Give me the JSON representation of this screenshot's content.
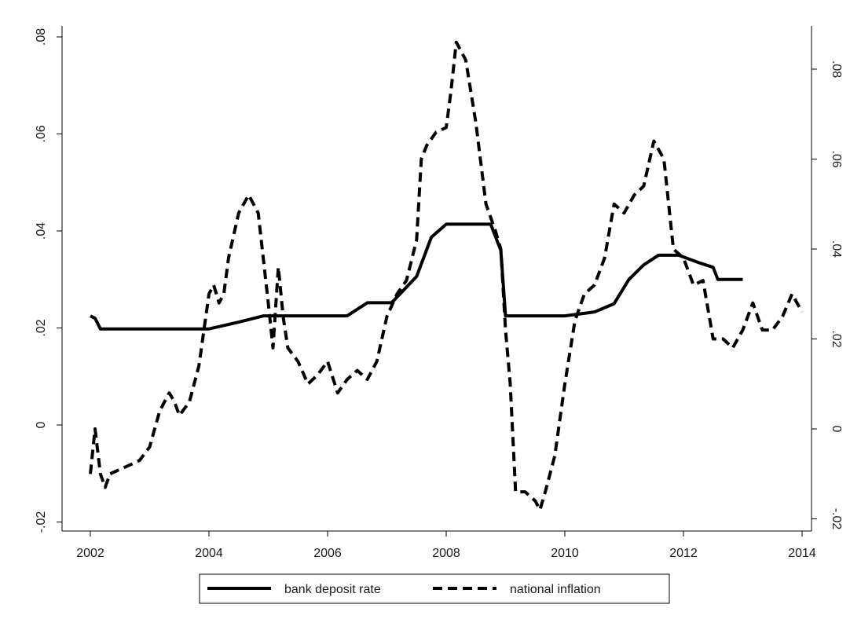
{
  "chart_data": {
    "type": "line",
    "title": "",
    "xlabel": "",
    "ylabel": "",
    "y2label": "",
    "grid": false,
    "legend_position": "bottom",
    "xlim": [
      2002,
      2014
    ],
    "x_ticks": [
      "2002",
      "2004",
      "2006",
      "2008",
      "2010",
      "2012",
      "2014"
    ],
    "ylim_left": [
      -0.02,
      0.08
    ],
    "y_ticks_left": [
      "-.02",
      "0",
      ".02",
      ".04",
      ".06",
      ".08"
    ],
    "ylim_right": [
      -0.02,
      0.08
    ],
    "y_ticks_right": [
      "-.02",
      "0",
      ".02",
      ".04",
      ".06",
      ".08"
    ],
    "series": [
      {
        "name": "bank deposit rate",
        "style": "solid",
        "axis": "left",
        "color": "#000000",
        "x": [
          2002.0,
          2002.08,
          2002.17,
          2003.0,
          2004.0,
          2004.5,
          2004.92,
          2005.5,
          2006.33,
          2006.67,
          2007.08,
          2007.5,
          2007.75,
          2008.0,
          2008.75,
          2008.92,
          2009.0,
          2010.0,
          2010.5,
          2010.83,
          2011.08,
          2011.33,
          2011.58,
          2011.92,
          2012.25,
          2012.5,
          2012.58,
          2013.0
        ],
        "y": [
          0.0225,
          0.022,
          0.0198,
          0.0198,
          0.0198,
          0.0212,
          0.0225,
          0.0225,
          0.0225,
          0.0252,
          0.0252,
          0.0306,
          0.0387,
          0.0414,
          0.0414,
          0.036,
          0.0225,
          0.0225,
          0.0233,
          0.025,
          0.03,
          0.033,
          0.035,
          0.035,
          0.0335,
          0.0325,
          0.03,
          0.03
        ]
      },
      {
        "name": "national inflation",
        "style": "dashed",
        "axis": "right",
        "color": "#000000",
        "x": [
          2002.0,
          2002.08,
          2002.17,
          2002.25,
          2002.33,
          2002.5,
          2002.67,
          2002.83,
          2003.0,
          2003.17,
          2003.33,
          2003.42,
          2003.5,
          2003.67,
          2003.83,
          2004.0,
          2004.08,
          2004.17,
          2004.25,
          2004.33,
          2004.5,
          2004.67,
          2004.83,
          2005.0,
          2005.08,
          2005.17,
          2005.25,
          2005.33,
          2005.5,
          2005.67,
          2005.83,
          2006.0,
          2006.17,
          2006.33,
          2006.5,
          2006.67,
          2006.83,
          2007.0,
          2007.17,
          2007.33,
          2007.5,
          2007.58,
          2007.67,
          2007.83,
          2008.0,
          2008.08,
          2008.17,
          2008.25,
          2008.33,
          2008.5,
          2008.67,
          2008.83,
          2008.92,
          2009.0,
          2009.08,
          2009.17,
          2009.33,
          2009.5,
          2009.58,
          2009.67,
          2009.83,
          2010.0,
          2010.17,
          2010.33,
          2010.5,
          2010.67,
          2010.83,
          2011.0,
          2011.17,
          2011.33,
          2011.5,
          2011.67,
          2011.83,
          2012.0,
          2012.17,
          2012.33,
          2012.5,
          2012.67,
          2012.83,
          2013.0,
          2013.17,
          2013.33,
          2013.5,
          2013.67,
          2013.83,
          2014.0
        ],
        "y": [
          -0.01,
          0.0,
          -0.01,
          -0.013,
          -0.01,
          -0.009,
          -0.008,
          -0.007,
          -0.004,
          0.004,
          0.008,
          0.006,
          0.003,
          0.006,
          0.014,
          0.03,
          0.032,
          0.028,
          0.03,
          0.038,
          0.048,
          0.052,
          0.048,
          0.028,
          0.018,
          0.036,
          0.025,
          0.018,
          0.015,
          0.01,
          0.012,
          0.015,
          0.008,
          0.011,
          0.013,
          0.011,
          0.015,
          0.025,
          0.03,
          0.033,
          0.042,
          0.06,
          0.063,
          0.066,
          0.067,
          0.075,
          0.086,
          0.084,
          0.082,
          0.068,
          0.05,
          0.044,
          0.04,
          0.022,
          0.01,
          -0.014,
          -0.014,
          -0.016,
          -0.018,
          -0.014,
          -0.006,
          0.01,
          0.024,
          0.03,
          0.032,
          0.038,
          0.05,
          0.048,
          0.052,
          0.054,
          0.064,
          0.06,
          0.04,
          0.038,
          0.032,
          0.033,
          0.02,
          0.02,
          0.018,
          0.022,
          0.028,
          0.022,
          0.022,
          0.025,
          0.03,
          0.026
        ]
      }
    ]
  }
}
